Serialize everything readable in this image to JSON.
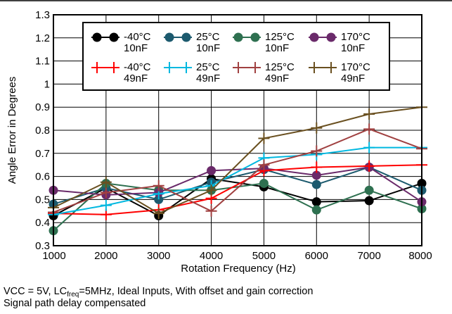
{
  "chart_data": {
    "type": "line",
    "title": "",
    "xlabel": "Rotation Frequency (Hz)",
    "ylabel": "Angle Error in Degrees",
    "x": [
      1000,
      2000,
      3000,
      4000,
      5000,
      6000,
      7000,
      8000
    ],
    "xlim": [
      1000,
      8000
    ],
    "ylim": [
      0.3,
      1.3
    ],
    "xticks": [
      "1000",
      "2000",
      "3000",
      "4000",
      "5000",
      "6000",
      "7000",
      "8000"
    ],
    "yticks": [
      "0.3",
      "0.4",
      "0.5",
      "0.6",
      "0.7",
      "0.8",
      "0.9",
      "1",
      "1.1",
      "1.2",
      "1.3"
    ],
    "grid": true,
    "legend_position": "top-right",
    "series": [
      {
        "name_line1": "-40°C",
        "name_line2": "10nF",
        "marker": "circle",
        "color": "#000000",
        "values": [
          0.43,
          0.55,
          0.43,
          0.59,
          0.555,
          0.49,
          0.495,
          0.57
        ]
      },
      {
        "name_line1": "25°C",
        "name_line2": "10nF",
        "marker": "circle",
        "color": "#1c5a6e",
        "values": [
          0.48,
          0.55,
          0.5,
          0.575,
          0.63,
          0.565,
          0.64,
          0.54
        ]
      },
      {
        "name_line1": "125°C",
        "name_line2": "10nF",
        "marker": "circle",
        "color": "#2e7050",
        "values": [
          0.365,
          0.57,
          0.54,
          0.54,
          0.57,
          0.455,
          0.54,
          0.46
        ]
      },
      {
        "name_line1": "170°C",
        "name_line2": "10nF",
        "marker": "circle",
        "color": "#6a2a6a",
        "values": [
          0.54,
          0.52,
          0.53,
          0.625,
          0.635,
          0.605,
          0.64,
          0.49
        ]
      },
      {
        "name_line1": "-40°C",
        "name_line2": "49nF",
        "marker": "plus",
        "color": "#ff0000",
        "values": [
          0.44,
          0.435,
          0.455,
          0.505,
          0.625,
          0.64,
          0.645,
          0.65
        ]
      },
      {
        "name_line1": "25°C",
        "name_line2": "49nF",
        "marker": "plus",
        "color": "#00b8e0",
        "values": [
          0.435,
          0.475,
          0.525,
          0.56,
          0.68,
          0.695,
          0.725,
          0.725
        ]
      },
      {
        "name_line1": "125°C",
        "name_line2": "49nF",
        "marker": "plus",
        "color": "#a04040",
        "values": [
          0.445,
          0.53,
          0.56,
          0.45,
          0.65,
          0.71,
          0.805,
          0.72
        ]
      },
      {
        "name_line1": "170°C",
        "name_line2": "49nF",
        "marker": "plus",
        "color": "#6a5020",
        "values": [
          0.465,
          0.575,
          0.44,
          0.54,
          0.765,
          0.81,
          0.87,
          0.9
        ]
      }
    ]
  },
  "caption": {
    "line1_pre": "VCC = 5V, LC",
    "line1_sub": "freq",
    "line1_post": "=5MHz, Ideal Inputs, With offset and gain correction",
    "line2": "Signal path delay compensated"
  }
}
